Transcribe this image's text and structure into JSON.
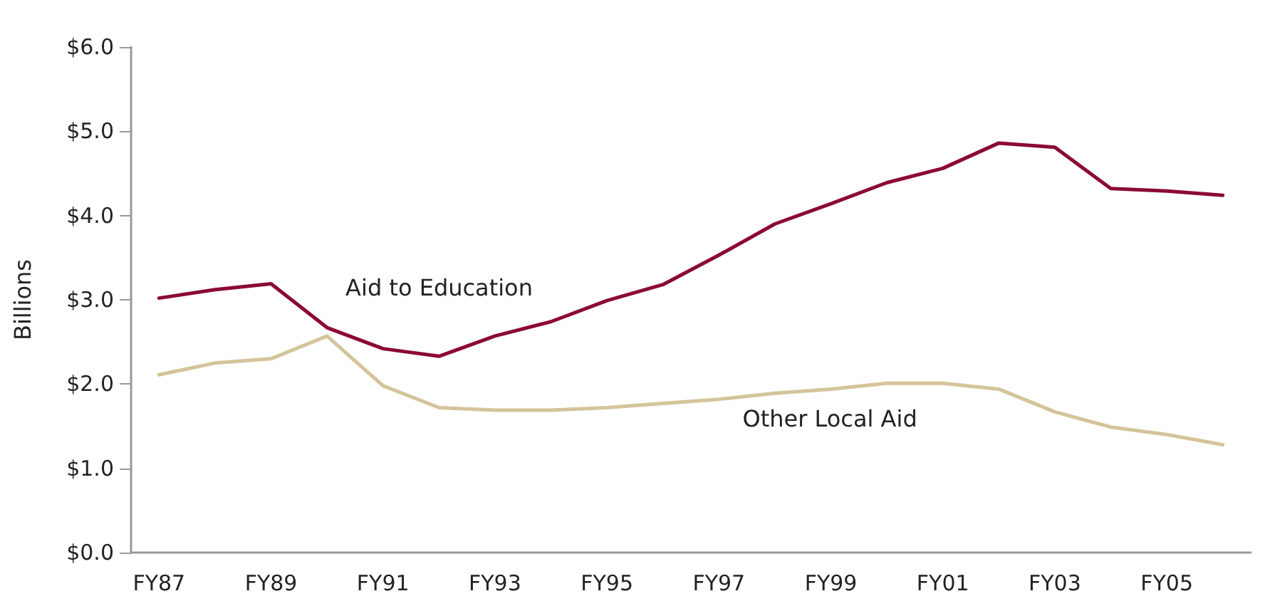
{
  "chart_data": {
    "type": "line",
    "ylabel": "Billions",
    "categories": [
      "FY87",
      null,
      "FY89",
      null,
      "FY91",
      null,
      "FY93",
      null,
      "FY95",
      null,
      "FY97",
      null,
      "FY99",
      null,
      "FY01",
      null,
      "FY03",
      null,
      "FY05",
      null
    ],
    "series": [
      {
        "name": "Aid to Education",
        "color": "#8b0a32",
        "values": [
          3.02,
          3.12,
          3.19,
          2.67,
          2.42,
          2.33,
          2.57,
          2.74,
          2.99,
          3.18,
          3.53,
          3.9,
          4.14,
          4.39,
          4.56,
          4.86,
          4.81,
          4.32,
          4.29,
          4.24
        ]
      },
      {
        "name": "Other Local Aid",
        "color": "#d4c49a",
        "values": [
          2.11,
          2.25,
          2.3,
          2.57,
          1.98,
          1.72,
          1.69,
          1.69,
          1.72,
          1.77,
          1.82,
          1.89,
          1.94,
          2.01,
          2.01,
          1.94,
          1.67,
          1.49,
          1.4,
          1.28
        ]
      }
    ],
    "ylim": [
      0,
      6
    ],
    "yticks": [
      {
        "value": 0,
        "label": "$0.0"
      },
      {
        "value": 1,
        "label": "$1.0"
      },
      {
        "value": 2,
        "label": "$2.0"
      },
      {
        "value": 3,
        "label": "$3.0"
      },
      {
        "value": 4,
        "label": "$4.0"
      },
      {
        "value": 5,
        "label": "$5.0"
      },
      {
        "value": 6,
        "label": "$6.0"
      }
    ],
    "grid": false,
    "legend": false,
    "marker": "none",
    "line_style": "solid"
  }
}
